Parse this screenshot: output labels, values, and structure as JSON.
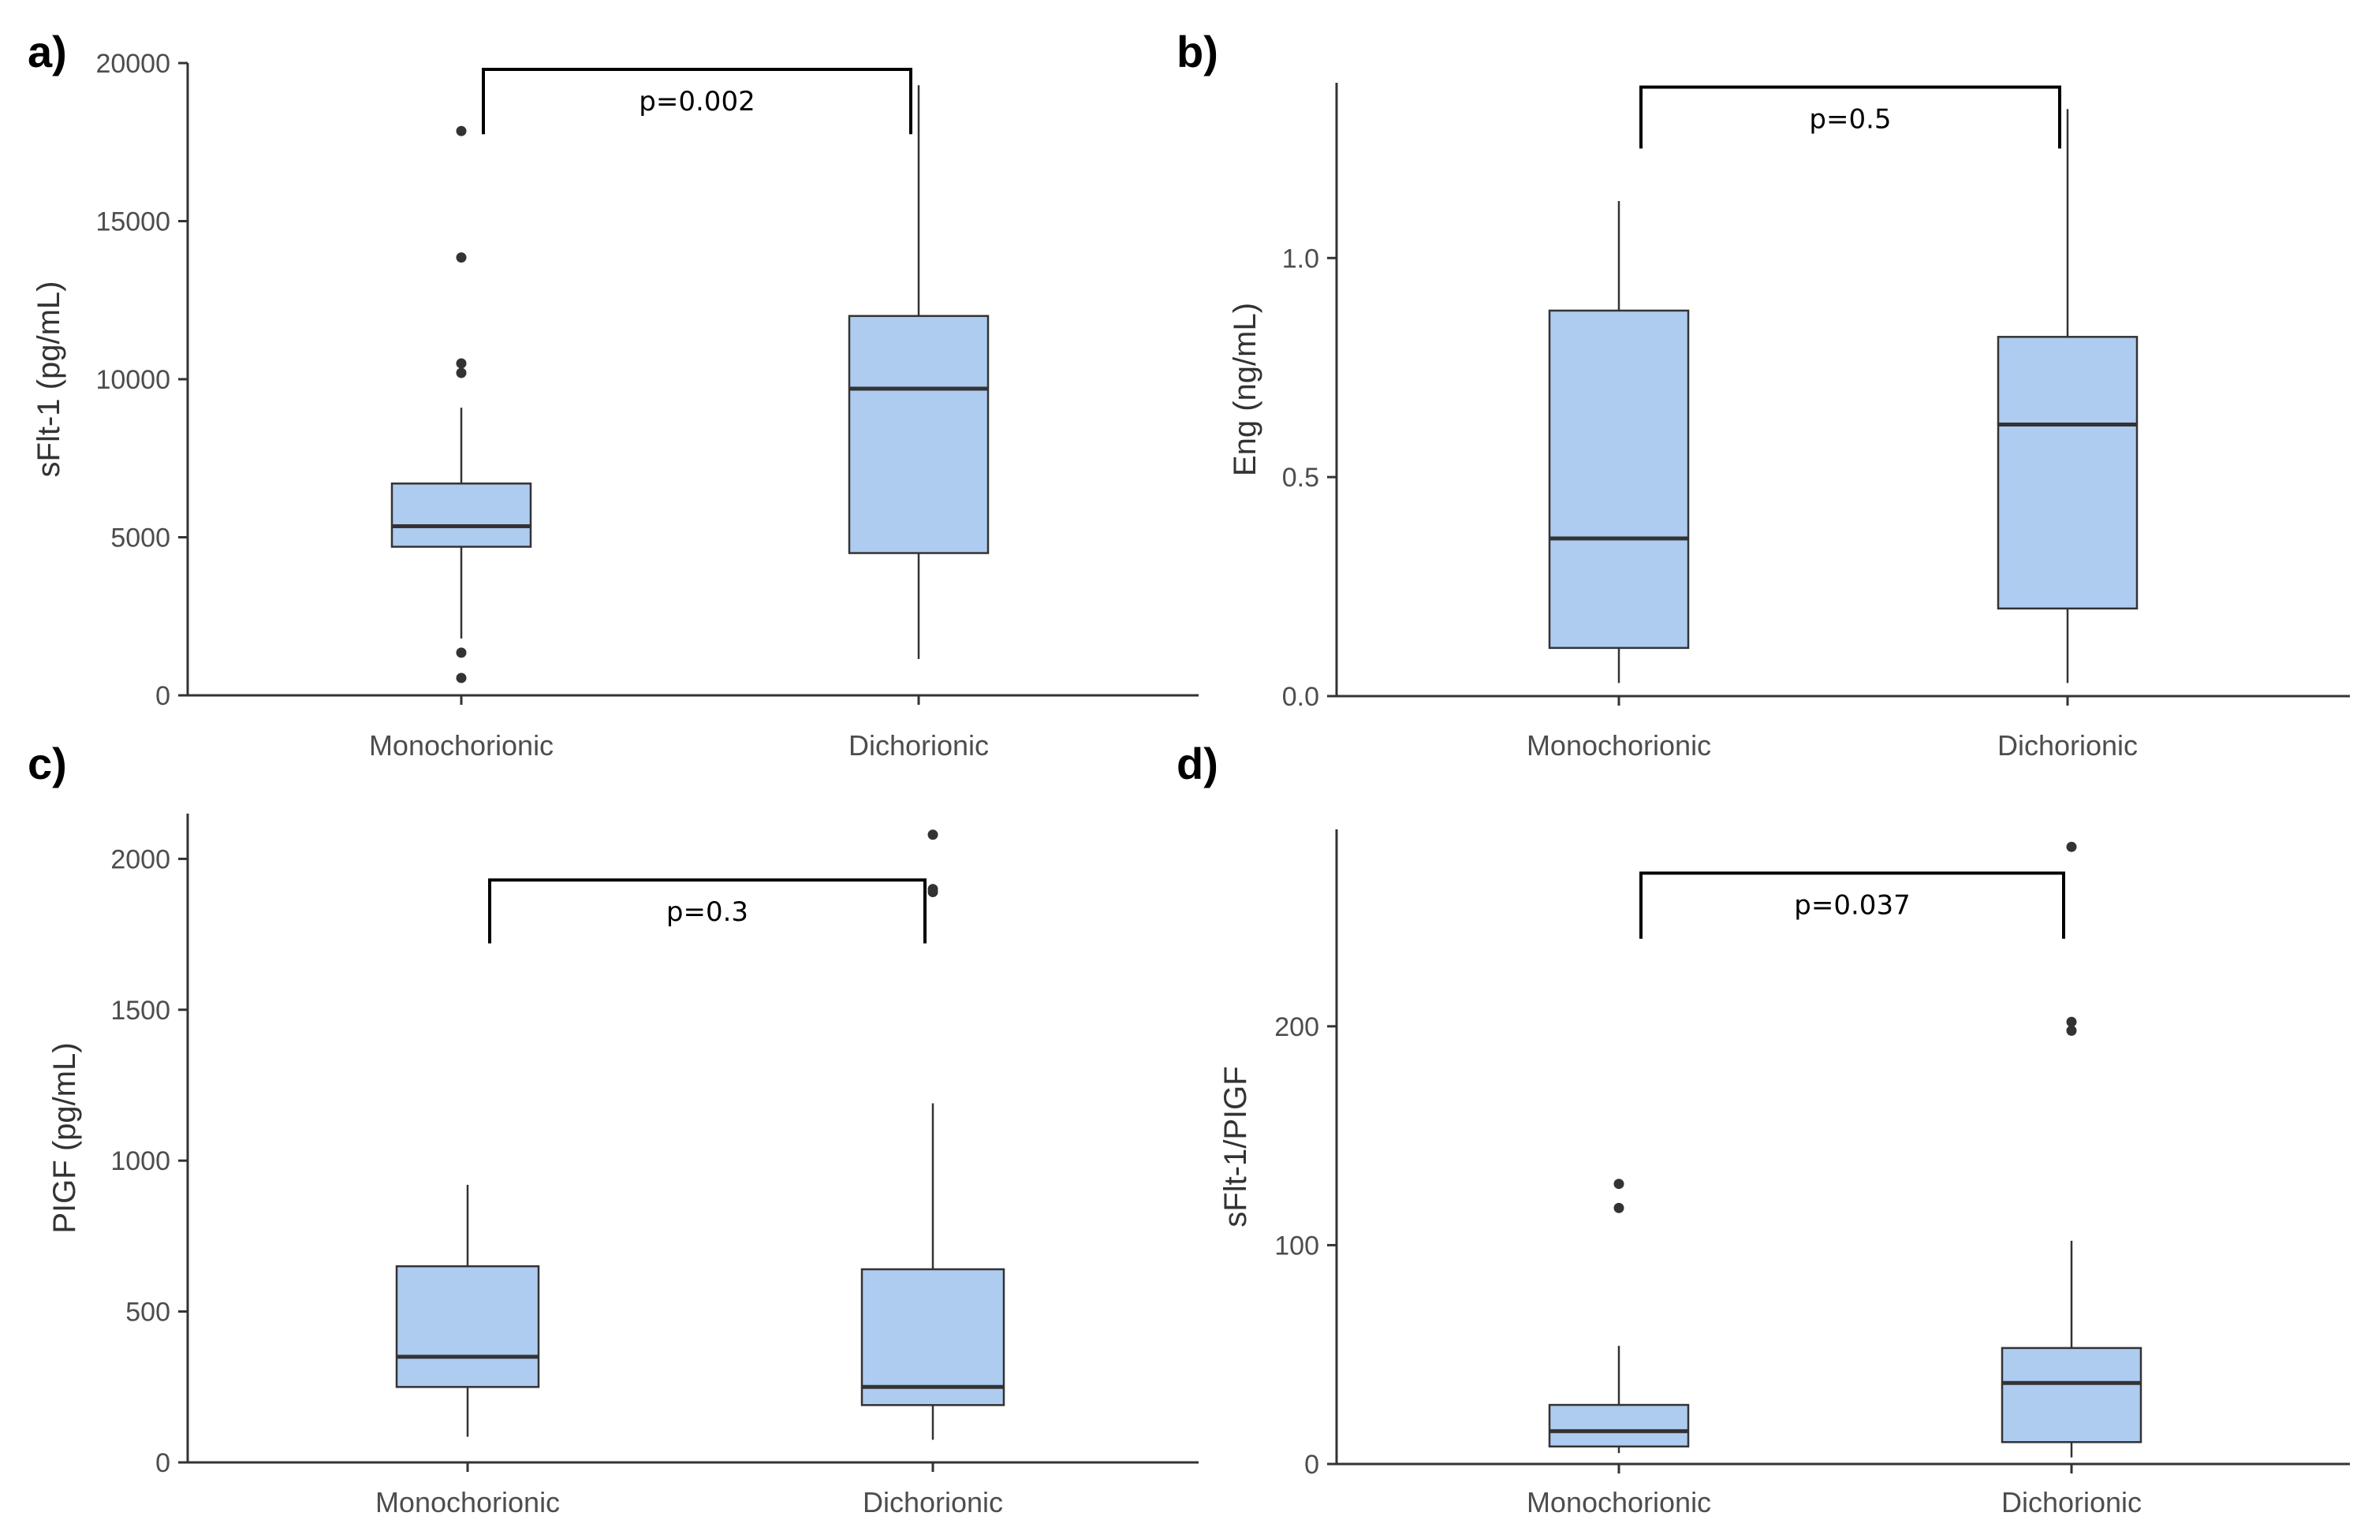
{
  "chart_data": [
    {
      "id": "a",
      "panel_label": "a)",
      "type": "boxplot",
      "ylabel": "sFlt-1 (pg/mL)",
      "xlabel": "",
      "ylim": [
        0,
        20000
      ],
      "yticks": [
        0,
        5000,
        10000,
        15000,
        20000
      ],
      "ytick_labels": [
        "0",
        "5000",
        "10000",
        "15000",
        "20000"
      ],
      "categories": [
        "Monochorionic",
        "Dichorionic"
      ],
      "boxes": [
        {
          "name": "Monochorionic",
          "whisker_low": 1800,
          "q1": 4700,
          "median": 5350,
          "q3": 6700,
          "whisker_high": 9100,
          "outliers": [
            17850,
            13850,
            10500,
            10200,
            1350,
            550
          ]
        },
        {
          "name": "Dichorionic",
          "whisker_low": 1150,
          "q1": 4500,
          "median": 9700,
          "q3": 12000,
          "whisker_high": 19300,
          "outliers": []
        }
      ],
      "comparison": {
        "label": "p=0.002",
        "y_top": 19800,
        "y_bottom": 17750
      }
    },
    {
      "id": "b",
      "panel_label": "b)",
      "type": "boxplot",
      "ylabel": "Eng (ng/mL)",
      "xlabel": "",
      "ylim": [
        0,
        1.4
      ],
      "yticks": [
        0,
        0.5,
        1.0
      ],
      "ytick_labels": [
        "0.0",
        "0.5",
        "1.0"
      ],
      "categories": [
        "Monochorionic",
        "Dichorionic"
      ],
      "boxes": [
        {
          "name": "Monochorionic",
          "whisker_low": 0.03,
          "q1": 0.11,
          "median": 0.36,
          "q3": 0.88,
          "whisker_high": 1.13,
          "outliers": []
        },
        {
          "name": "Dichorionic",
          "whisker_low": 0.03,
          "q1": 0.2,
          "median": 0.62,
          "q3": 0.82,
          "whisker_high": 1.34,
          "outliers": []
        }
      ],
      "comparison": {
        "label": "p=0.5",
        "y_top": 1.39,
        "y_bottom": 1.25
      }
    },
    {
      "id": "c",
      "panel_label": "c)",
      "type": "boxplot",
      "ylabel": "PIGF (pg/mL)",
      "xlabel": "",
      "ylim": [
        0,
        2150
      ],
      "yticks": [
        0,
        500,
        1000,
        1500,
        2000
      ],
      "ytick_labels": [
        "0",
        "500",
        "1000",
        "1500",
        "2000"
      ],
      "categories": [
        "Monochorionic",
        "Dichorionic"
      ],
      "boxes": [
        {
          "name": "Monochorionic",
          "whisker_low": 85,
          "q1": 250,
          "median": 350,
          "q3": 650,
          "whisker_high": 920,
          "outliers": []
        },
        {
          "name": "Dichorionic",
          "whisker_low": 75,
          "q1": 190,
          "median": 250,
          "q3": 640,
          "whisker_high": 1190,
          "outliers": [
            2080,
            1900,
            1890
          ]
        }
      ],
      "comparison": {
        "label": "p=0.3",
        "y_top": 1930,
        "y_bottom": 1720
      }
    },
    {
      "id": "d",
      "panel_label": "d)",
      "type": "boxplot",
      "ylabel": "sFlt-1/PIGF",
      "xlabel": "",
      "ylim": [
        0,
        290
      ],
      "yticks": [
        0,
        100,
        200
      ],
      "ytick_labels": [
        "0",
        "100",
        "200"
      ],
      "categories": [
        "Monochorionic",
        "Dichorionic"
      ],
      "boxes": [
        {
          "name": "Monochorionic",
          "whisker_low": 5,
          "q1": 8,
          "median": 15,
          "q3": 27,
          "whisker_high": 54,
          "outliers": [
            128,
            117
          ]
        },
        {
          "name": "Dichorionic",
          "whisker_low": 3,
          "q1": 10,
          "median": 37,
          "q3": 53,
          "whisker_high": 102,
          "outliers": [
            282,
            202,
            198
          ]
        }
      ],
      "comparison": {
        "label": "p=0.037",
        "y_top": 270,
        "y_bottom": 240
      }
    }
  ],
  "colors": {
    "box_fill": "#aecbf0",
    "box_stroke": "#333333",
    "axis": "#333333",
    "point": "#333333",
    "bracket": "#000000"
  }
}
